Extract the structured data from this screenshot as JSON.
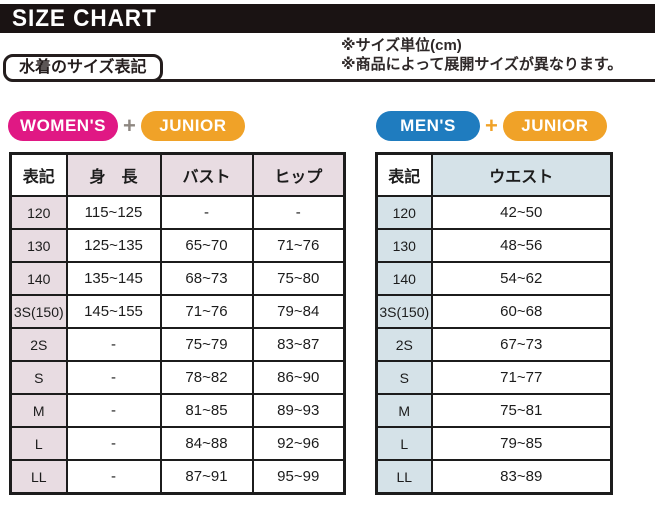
{
  "header": {
    "title": "SIZE CHART"
  },
  "notes": {
    "line1": "※サイズ単位(cm)",
    "line2": "※商品によって展開サイズが異なります。"
  },
  "section_label": "水着のサイズ表記",
  "badges": {
    "left": {
      "primary": "WOMEN'S",
      "plus": "+",
      "secondary": "JUNIOR"
    },
    "right": {
      "primary": "MEN'S",
      "plus": "+",
      "secondary": "JUNIOR"
    }
  },
  "colors": {
    "bar": "#1a1313",
    "pink": "#e01884",
    "orange": "#f0a228",
    "blue": "#1f7cbf",
    "plusgray": "#8e8781",
    "womencell": "#e8dce2",
    "mencell": "#d5e2e8"
  },
  "chart_data": [
    {
      "type": "table",
      "title": "WOMEN'S + JUNIOR",
      "columns": [
        "表記",
        "身　長",
        "バスト",
        "ヒップ"
      ],
      "rows": [
        [
          "120",
          "115~125",
          "-",
          "-"
        ],
        [
          "130",
          "125~135",
          "65~70",
          "71~76"
        ],
        [
          "140",
          "135~145",
          "68~73",
          "75~80"
        ],
        [
          "3S(150)",
          "145~155",
          "71~76",
          "79~84"
        ],
        [
          "2S",
          "-",
          "75~79",
          "83~87"
        ],
        [
          "S",
          "-",
          "78~82",
          "86~90"
        ],
        [
          "M",
          "-",
          "81~85",
          "89~93"
        ],
        [
          "L",
          "-",
          "84~88",
          "92~96"
        ],
        [
          "LL",
          "-",
          "87~91",
          "95~99"
        ]
      ]
    },
    {
      "type": "table",
      "title": "MEN'S + JUNIOR",
      "columns": [
        "表記",
        "ウエスト"
      ],
      "rows": [
        [
          "120",
          "42~50"
        ],
        [
          "130",
          "48~56"
        ],
        [
          "140",
          "54~62"
        ],
        [
          "3S(150)",
          "60~68"
        ],
        [
          "2S",
          "67~73"
        ],
        [
          "S",
          "71~77"
        ],
        [
          "M",
          "75~81"
        ],
        [
          "L",
          "79~85"
        ],
        [
          "LL",
          "83~89"
        ]
      ]
    }
  ]
}
